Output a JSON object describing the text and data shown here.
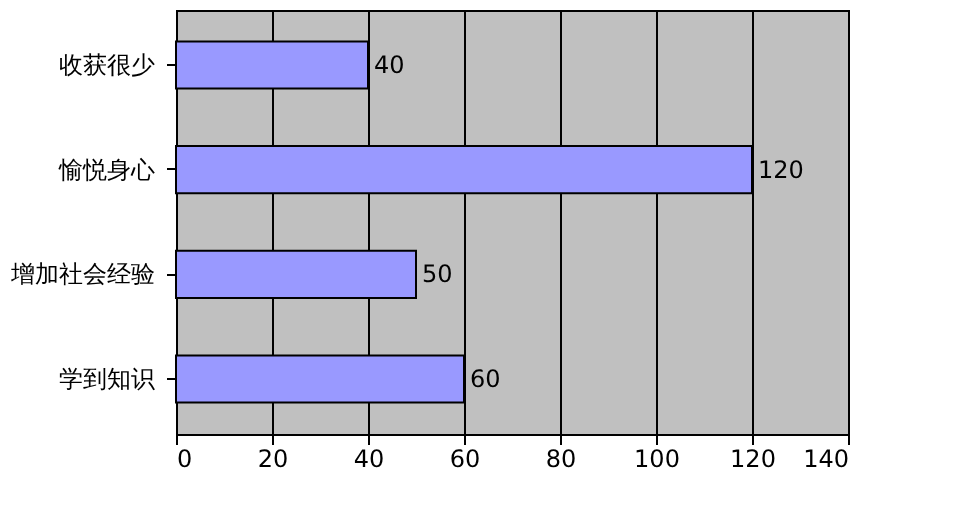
{
  "chart_data": {
    "type": "bar",
    "orientation": "horizontal",
    "categories": [
      "收获很少",
      "愉悦身心",
      "增加社会经验",
      "学到知识"
    ],
    "values": [
      40,
      120,
      50,
      60
    ],
    "color": "#9999ff",
    "xlim": [
      0,
      140
    ],
    "xticks": [
      0,
      20,
      40,
      60,
      80,
      100,
      120,
      140
    ],
    "grid": "x",
    "data_labels": true
  }
}
